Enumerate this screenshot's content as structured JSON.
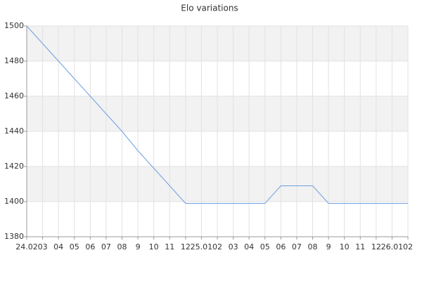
{
  "chart_data": {
    "type": "line",
    "title": "Elo variations",
    "categories": [
      "24.02",
      "03",
      "04",
      "05",
      "06",
      "07",
      "08",
      "9",
      "10",
      "11",
      "12",
      "25.01",
      "02",
      "03",
      "04",
      "05",
      "06",
      "07",
      "08",
      "9",
      "10",
      "11",
      "12",
      "26.01",
      "02"
    ],
    "series": [
      {
        "color": "#6f9fe0",
        "values": [
          1500,
          1490,
          1480,
          1470,
          1460,
          1450,
          1440,
          1429,
          1419,
          1409,
          1399,
          1399,
          1399,
          1399,
          1399,
          1399,
          1409,
          1409,
          1409,
          1399,
          1399,
          1399,
          1399,
          1399,
          1399
        ]
      }
    ],
    "ylim": [
      1380,
      1500
    ],
    "yticks": [
      1380,
      1400,
      1420,
      1440,
      1460,
      1480,
      1500
    ],
    "grid": true,
    "band_color": "#f2f2f2"
  }
}
